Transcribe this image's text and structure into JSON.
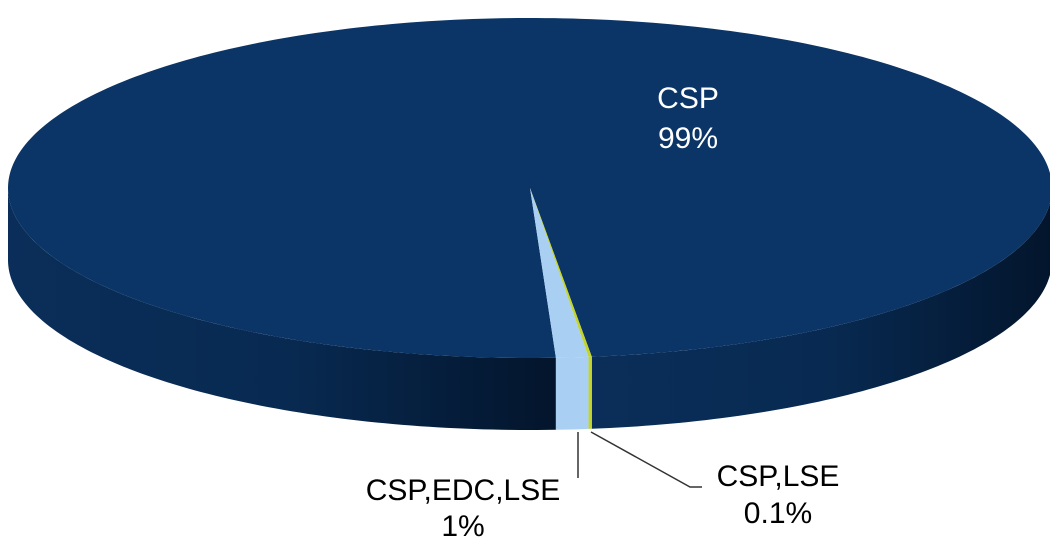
{
  "chart_data": {
    "type": "pie",
    "categories": [
      "CSP",
      "CSP,EDC,LSE",
      "CSP,LSE"
    ],
    "values": [
      99,
      1,
      0.1
    ],
    "value_labels": [
      "99%",
      "1%",
      "0.1%"
    ],
    "colors": [
      "#0b3566",
      "#a9cff2",
      "#c3d42a"
    ]
  }
}
